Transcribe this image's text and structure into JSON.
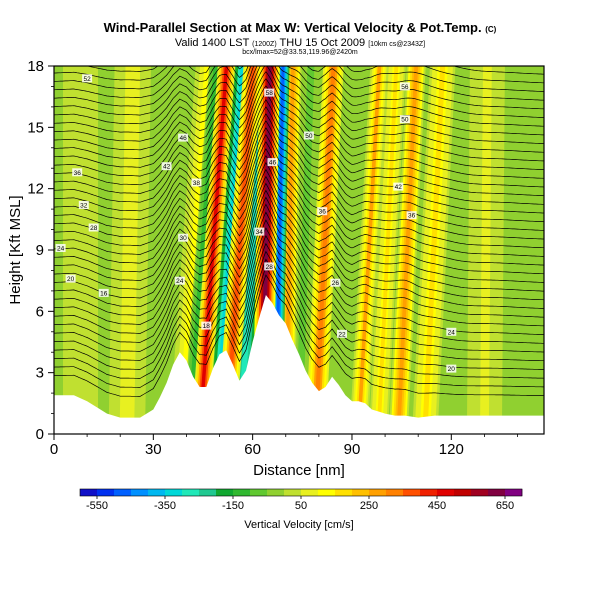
{
  "title": {
    "main": "Wind-Parallel Section at Max W: Vertical Velocity & Pot.Temp.",
    "copyright": "(C)",
    "valid_line": "Valid 1400 LST",
    "utc": "(1200Z)",
    "date": "THU 15 Oct 2009",
    "run": "[10km cs@2343Z]",
    "coords_line": "bcx/lmax=52@33.53,119.96@2420m"
  },
  "chart_data": {
    "type": "heatmap",
    "xlabel": "Distance [nm]",
    "ylabel": "Height [Kft MSL]",
    "xlim": [
      0,
      148
    ],
    "ylim": [
      0,
      18
    ],
    "x_ticks": [
      0,
      30,
      60,
      90,
      120
    ],
    "y_ticks": [
      0,
      3,
      6,
      9,
      12,
      15,
      18
    ],
    "colorbar": {
      "label": "Vertical Velocity [cm/s]",
      "tick_labels": [
        "-550",
        "-350",
        "-150",
        "50",
        "250",
        "450",
        "650"
      ],
      "range": [
        -600,
        700
      ],
      "bins": 26,
      "colors": [
        "#1010c8",
        "#0030f0",
        "#0060ff",
        "#0090ff",
        "#00b8f0",
        "#00d8d8",
        "#20e8b8",
        "#20c890",
        "#10a830",
        "#30b830",
        "#60c830",
        "#90d030",
        "#c0e030",
        "#e8f020",
        "#ffff00",
        "#ffe000",
        "#ffc000",
        "#ffa000",
        "#ff8000",
        "#ff5000",
        "#f02000",
        "#e00000",
        "#c00000",
        "#a00020",
        "#800040",
        "#800080"
      ]
    },
    "terrain": {
      "x": [
        0,
        6,
        10,
        13,
        16,
        20,
        26,
        30,
        32,
        34,
        36,
        38,
        40,
        42,
        44,
        46,
        48,
        50,
        52,
        54,
        56,
        58,
        60,
        62,
        64,
        66,
        68,
        70,
        72,
        74,
        76,
        78,
        80,
        82,
        84,
        86,
        88,
        90,
        92,
        94,
        96,
        98,
        100,
        103,
        106,
        110,
        115,
        120,
        125,
        130,
        135,
        140,
        145,
        148
      ],
      "height_kft": [
        1.9,
        1.9,
        1.6,
        1.3,
        1.0,
        0.8,
        0.8,
        1.2,
        1.8,
        2.5,
        3.4,
        4.0,
        3.6,
        2.8,
        2.3,
        2.3,
        3.2,
        3.9,
        4.1,
        3.4,
        2.6,
        3.1,
        4.5,
        5.7,
        6.8,
        6.4,
        5.8,
        5.4,
        4.6,
        3.9,
        3.1,
        2.5,
        2.1,
        2.3,
        2.8,
        2.4,
        1.9,
        1.6,
        1.6,
        1.5,
        1.2,
        1.1,
        1.0,
        0.9,
        0.9,
        0.8,
        0.9,
        0.9,
        0.9,
        0.9,
        0.9,
        0.9,
        0.9,
        0.9
      ]
    },
    "vertical_velocity_bands": [
      {
        "x": 38,
        "w_cms": 120,
        "width_nm": 3,
        "tilt": 0.45
      },
      {
        "x": 41,
        "w_cms": -150,
        "width_nm": 2,
        "tilt": 0.45
      },
      {
        "x": 44,
        "w_cms": 480,
        "width_nm": 2.4,
        "tilt": 0.45
      },
      {
        "x": 49,
        "w_cms": -320,
        "width_nm": 3.2,
        "tilt": 0.45
      },
      {
        "x": 52,
        "w_cms": 380,
        "width_nm": 2.6,
        "tilt": 0.45
      },
      {
        "x": 56,
        "w_cms": -260,
        "width_nm": 3.6,
        "tilt": 0.45
      },
      {
        "x": 63,
        "w_cms": 640,
        "width_nm": 2.8,
        "tilt": 0.12
      },
      {
        "x": 67,
        "w_cms": -500,
        "width_nm": 1.8,
        "tilt": 0.12
      },
      {
        "x": 70,
        "w_cms": 280,
        "width_nm": 2.4,
        "tilt": 0.12
      },
      {
        "x": 74,
        "w_cms": -60,
        "width_nm": 2.4,
        "tilt": 0.2
      },
      {
        "x": 79,
        "w_cms": 330,
        "width_nm": 2.8,
        "tilt": 0.3
      },
      {
        "x": 86,
        "w_cms": -40,
        "width_nm": 3,
        "tilt": 0.3
      },
      {
        "x": 92,
        "w_cms": 250,
        "width_nm": 2.5,
        "tilt": 0.35
      },
      {
        "x": 98,
        "w_cms": 160,
        "width_nm": 2.6,
        "tilt": 0.3
      },
      {
        "x": 104,
        "w_cms": 290,
        "width_nm": 2.6,
        "tilt": 0.3
      },
      {
        "x": 112,
        "w_cms": 170,
        "width_nm": 3.5,
        "tilt": 0.3
      },
      {
        "x": 22,
        "w_cms": 80,
        "width_nm": 5,
        "tilt": 0.1
      },
      {
        "x": 8,
        "w_cms": 40,
        "width_nm": 6,
        "tilt": 0.0
      },
      {
        "x": 130,
        "w_cms": 60,
        "width_nm": 6,
        "tilt": 0.05
      }
    ],
    "background_w_cms": -20,
    "pot_temp_contours": {
      "count": 40,
      "start_height_kft": 1.0,
      "top_height_kft": 18.5
    },
    "contour_labels": [
      {
        "x": 10,
        "y": 17.4,
        "text": "52"
      },
      {
        "x": 7,
        "y": 12.8,
        "text": "36"
      },
      {
        "x": 9,
        "y": 11.2,
        "text": "32"
      },
      {
        "x": 12,
        "y": 10.1,
        "text": "28"
      },
      {
        "x": 2,
        "y": 9.1,
        "text": "24"
      },
      {
        "x": 5,
        "y": 7.6,
        "text": "20"
      },
      {
        "x": 15,
        "y": 6.9,
        "text": "16"
      },
      {
        "x": 39,
        "y": 14.5,
        "text": "46"
      },
      {
        "x": 34,
        "y": 13.1,
        "text": "42"
      },
      {
        "x": 43,
        "y": 12.3,
        "text": "38"
      },
      {
        "x": 39,
        "y": 9.6,
        "text": "30"
      },
      {
        "x": 38,
        "y": 7.5,
        "text": "24"
      },
      {
        "x": 46,
        "y": 5.3,
        "text": "18"
      },
      {
        "x": 65,
        "y": 16.7,
        "text": "58"
      },
      {
        "x": 66,
        "y": 13.3,
        "text": "46"
      },
      {
        "x": 62,
        "y": 9.9,
        "text": "34"
      },
      {
        "x": 65,
        "y": 8.2,
        "text": "28"
      },
      {
        "x": 77,
        "y": 14.6,
        "text": "50"
      },
      {
        "x": 81,
        "y": 10.9,
        "text": "36"
      },
      {
        "x": 85,
        "y": 7.4,
        "text": "26"
      },
      {
        "x": 87,
        "y": 4.9,
        "text": "22"
      },
      {
        "x": 106,
        "y": 17.0,
        "text": "56"
      },
      {
        "x": 106,
        "y": 15.4,
        "text": "50"
      },
      {
        "x": 104,
        "y": 12.1,
        "text": "42"
      },
      {
        "x": 108,
        "y": 10.7,
        "text": "36"
      },
      {
        "x": 120,
        "y": 5.0,
        "text": "24"
      },
      {
        "x": 120,
        "y": 3.2,
        "text": "20"
      }
    ]
  }
}
